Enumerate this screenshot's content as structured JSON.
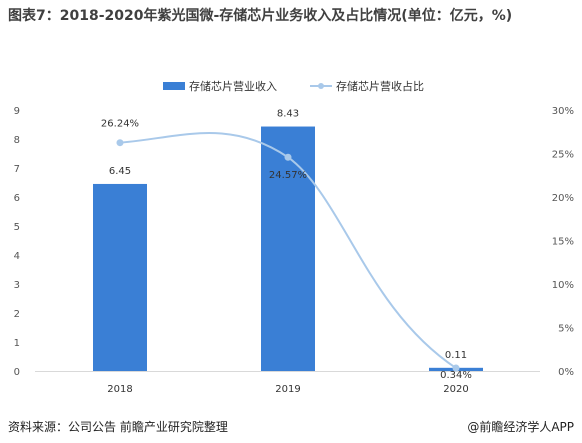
{
  "title": "图表7：2018-2020年紫光国微-存储芯片业务收入及占比情况(单位：亿元，%)",
  "chart_data": {
    "type": "bar",
    "categories": [
      "2018",
      "2019",
      "2020"
    ],
    "series": [
      {
        "name": "存储芯片营业收入",
        "kind": "bar",
        "axis": "left",
        "values": [
          6.45,
          8.43,
          0.11
        ],
        "labels": [
          "6.45",
          "8.43",
          "0.11"
        ],
        "color": "#3a7fd5"
      },
      {
        "name": "存储芯片营收占比",
        "kind": "line",
        "axis": "right",
        "values": [
          26.24,
          24.57,
          0.34
        ],
        "labels": [
          "26.24%",
          "24.57%",
          "0.34%"
        ],
        "color": "#a9c9ea"
      }
    ],
    "y_left": {
      "min": 0,
      "max": 9,
      "ticks": [
        "0",
        "1",
        "2",
        "3",
        "4",
        "5",
        "6",
        "7",
        "8",
        "9"
      ]
    },
    "y_right": {
      "min": 0,
      "max": 30,
      "ticks": [
        "0%",
        "5%",
        "10%",
        "15%",
        "20%",
        "25%",
        "30%"
      ]
    },
    "legend_position": "top-center",
    "grid": false
  },
  "footer": {
    "source": "资料来源：公司公告 前瞻产业研究院整理",
    "brand": "@前瞻经济学人APP"
  }
}
